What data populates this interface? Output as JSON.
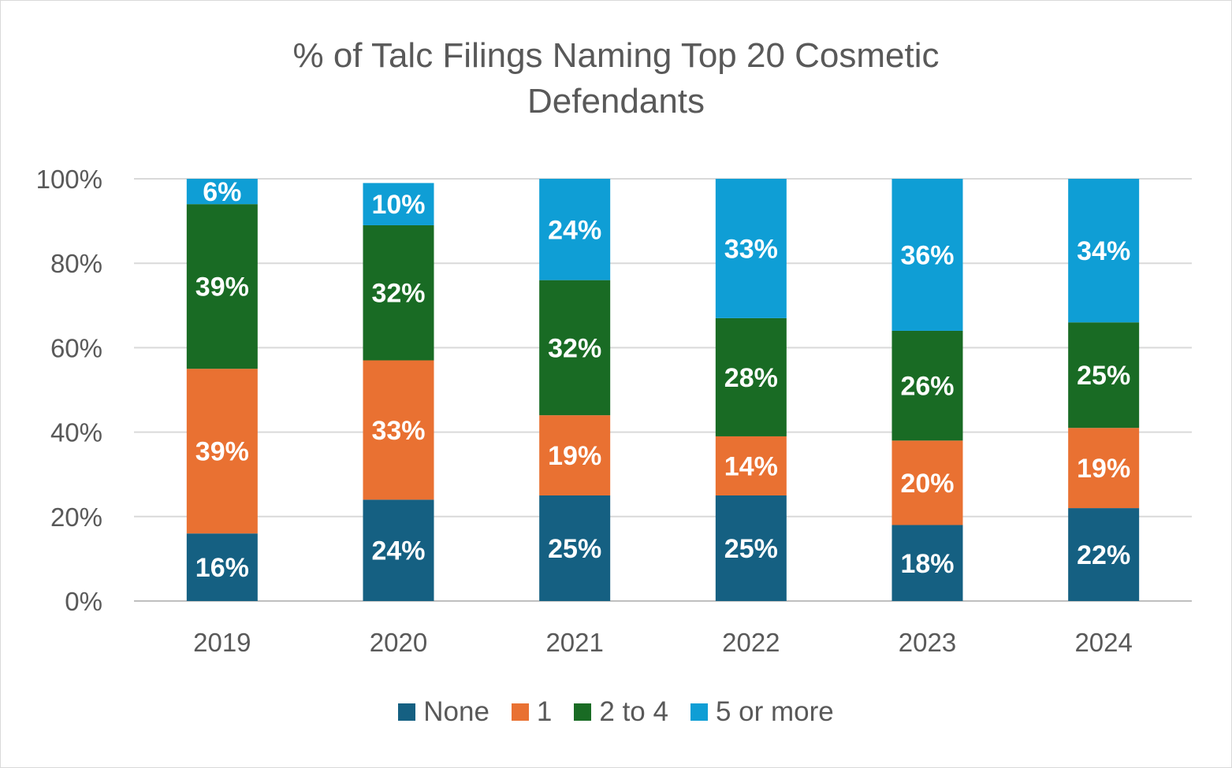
{
  "chart_data": {
    "type": "bar",
    "stacked": true,
    "title_lines": [
      "% of Talc Filings Naming Top 20 Cosmetic",
      "Defendants"
    ],
    "categories": [
      "2019",
      "2020",
      "2021",
      "2022",
      "2023",
      "2024"
    ],
    "ylim": [
      0,
      100
    ],
    "yticks": [
      "0%",
      "20%",
      "40%",
      "60%",
      "80%",
      "100%"
    ],
    "grid": true,
    "legend_position": "bottom",
    "series": [
      {
        "name": "None",
        "color": "#156082",
        "values": [
          16,
          24,
          25,
          25,
          18,
          22
        ],
        "labels": [
          "16%",
          "24%",
          "25%",
          "25%",
          "18%",
          "22%"
        ]
      },
      {
        "name": "1",
        "color": "#E97132",
        "values": [
          39,
          33,
          19,
          14,
          20,
          19
        ],
        "labels": [
          "39%",
          "33%",
          "19%",
          "14%",
          "20%",
          "19%"
        ]
      },
      {
        "name": "2 to 4",
        "color": "#196B24",
        "values": [
          39,
          32,
          32,
          28,
          26,
          25
        ],
        "labels": [
          "39%",
          "32%",
          "32%",
          "28%",
          "26%",
          "25%"
        ]
      },
      {
        "name": "5 or more",
        "color": "#0F9ED5",
        "values": [
          6,
          10,
          24,
          33,
          36,
          34
        ],
        "labels": [
          "6%",
          "10%",
          "24%",
          "33%",
          "36%",
          "34%"
        ]
      }
    ]
  }
}
